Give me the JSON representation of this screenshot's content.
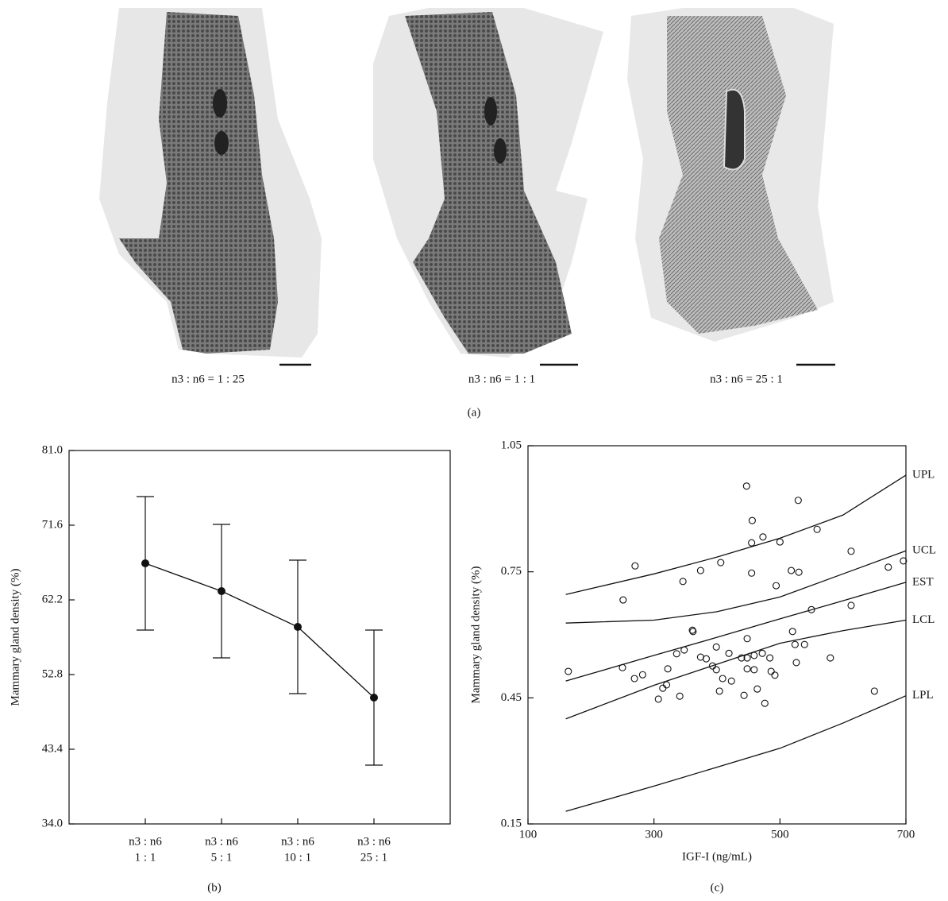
{
  "figure": {
    "images": [
      {
        "caption": "n3 : n6 = 1 : 25"
      },
      {
        "caption": "n3 : n6 = 1 : 1"
      },
      {
        "caption": "n3 : n6 = 25 : 1"
      }
    ],
    "label": "(a)"
  },
  "chart_data": [
    {
      "type": "line",
      "panel_label": "(b)",
      "y_label": "Mammary gland density (%)",
      "categories": [
        [
          "n3 : n6",
          "1 : 1"
        ],
        [
          "n3 : n6",
          "5 : 1"
        ],
        [
          "n3 : n6",
          "10 : 1"
        ],
        [
          "n3 : n6",
          "25 : 1"
        ]
      ],
      "values": [
        66.8,
        63.3,
        58.8,
        49.9
      ],
      "errors": [
        8.4,
        8.4,
        8.4,
        8.5
      ],
      "color": "#111111",
      "ylim": [
        34,
        81
      ],
      "yticks": [
        {
          "value": 34,
          "label": "34.0"
        },
        43.4,
        52.8,
        62.2,
        71.6,
        {
          "value": 81,
          "label": "81.0"
        }
      ]
    },
    {
      "type": "scatter",
      "panel_label": "(c)",
      "x_label": "IGF-I (ng/mL)",
      "y_label": "Mammary gland density (%)",
      "x": [
        164,
        250,
        251,
        270,
        269,
        282,
        307,
        314,
        320,
        322,
        336,
        341,
        346,
        348,
        361,
        362,
        374,
        374,
        383,
        393,
        399,
        399,
        404,
        406,
        409,
        419,
        423,
        439,
        443,
        447,
        448,
        448,
        448,
        455,
        455,
        456,
        459,
        459,
        464,
        472,
        473,
        476,
        484,
        486,
        492,
        494,
        500,
        518,
        520,
        524,
        526,
        529,
        530,
        539,
        550,
        559,
        580,
        613,
        613,
        672,
        650,
        696
      ],
      "values": [
        0.513,
        0.522,
        0.683,
        0.764,
        0.496,
        0.505,
        0.447,
        0.473,
        0.481,
        0.519,
        0.555,
        0.454,
        0.727,
        0.564,
        0.611,
        0.608,
        0.547,
        0.753,
        0.543,
        0.526,
        0.517,
        0.571,
        0.466,
        0.772,
        0.496,
        0.556,
        0.49,
        0.545,
        0.456,
        0.954,
        0.545,
        0.591,
        0.519,
        0.747,
        0.819,
        0.872,
        0.517,
        0.551,
        0.471,
        0.556,
        0.833,
        0.437,
        0.545,
        0.513,
        0.504,
        0.717,
        0.821,
        0.753,
        0.608,
        0.577,
        0.534,
        0.92,
        0.749,
        0.577,
        0.66,
        0.851,
        0.545,
        0.67,
        0.799,
        0.761,
        0.466,
        0.776
      ],
      "color": "#111111",
      "fit_lines": [
        {
          "name": "UPL",
          "x": [
            160,
            300,
            400,
            500,
            600,
            700
          ],
          "values": [
            0.696,
            0.745,
            0.785,
            0.83,
            0.885,
            0.98
          ]
        },
        {
          "name": "UCL",
          "x": [
            160,
            300,
            400,
            500,
            600,
            700
          ],
          "values": [
            0.628,
            0.635,
            0.655,
            0.69,
            0.745,
            0.8
          ]
        },
        {
          "name": "EST",
          "x": [
            160,
            300,
            400,
            500,
            600,
            700
          ],
          "values": [
            0.49,
            0.551,
            0.594,
            0.638,
            0.681,
            0.725
          ]
        },
        {
          "name": "LCL",
          "x": [
            160,
            300,
            400,
            500,
            600,
            700
          ],
          "values": [
            0.4,
            0.48,
            0.53,
            0.58,
            0.61,
            0.635
          ]
        },
        {
          "name": "LPL",
          "x": [
            160,
            300,
            400,
            500,
            600,
            700
          ],
          "values": [
            0.18,
            0.24,
            0.285,
            0.33,
            0.39,
            0.455
          ]
        }
      ],
      "xlim": [
        100,
        700
      ],
      "xticks": [
        100,
        300,
        500,
        700
      ],
      "ylim": [
        0.15,
        1.05
      ],
      "yticks": [
        0.15,
        0.45,
        0.75,
        1.05
      ]
    }
  ]
}
